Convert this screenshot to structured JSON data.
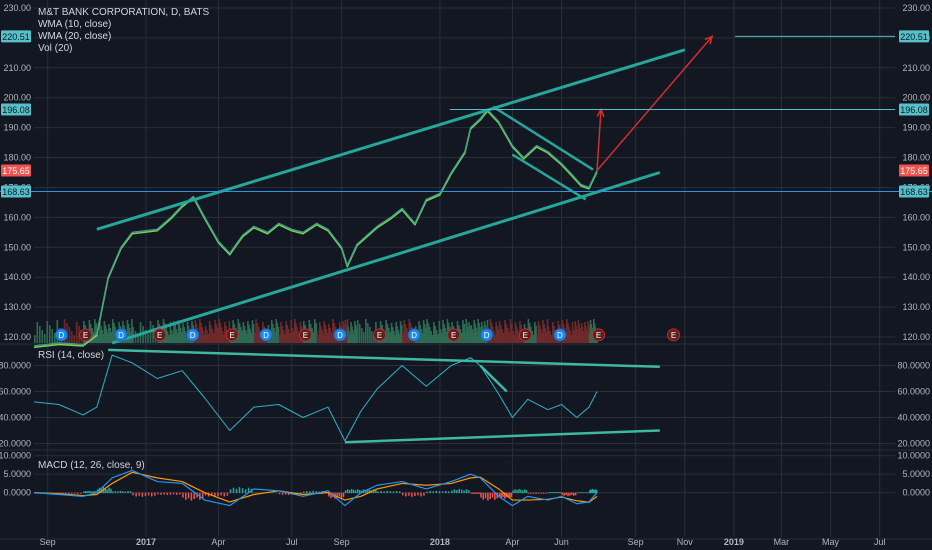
{
  "header": {
    "symbol": "M&T BANK CORPORATION, D, BATS",
    "indicators": [
      "WMA (10, close)",
      "WMA (20, close)",
      "Vol (20)"
    ]
  },
  "colors": {
    "background": "#131722",
    "grid": "#2a2e39",
    "axis_text": "#b2b5be",
    "channel": "#26a69a",
    "trendline": "#3fb8a0",
    "projection": "#d32f2f",
    "price_line": "#2196f3",
    "wma10": "#7cd34b",
    "wma20": "#e53935",
    "volume_up": "#2e6b53",
    "volume_down": "#6e2a2a",
    "rsi": "#2ab3c7",
    "macd": "#2196f3",
    "signal": "#ff9800",
    "hist_up": "#26a69a",
    "hist_down": "#ef5350",
    "label_cyan": "#55c0c9",
    "label_red": "#ef5350"
  },
  "chart_data": [
    {
      "type": "line",
      "pane": "price",
      "ylim": [
        118,
        232
      ],
      "y_ticks": [
        120,
        130,
        140,
        150,
        160,
        170,
        180,
        190,
        200,
        210,
        220,
        230
      ],
      "y_tick_labels": [
        "120.00",
        "130.00",
        "140.00",
        "150.00",
        "160.00",
        "170.00",
        "180.00",
        "190.00",
        "200.00",
        "210.00",
        "220.00",
        "230.00"
      ],
      "x_tick_labels": [
        "Sep",
        "2017",
        "Apr",
        "Jul",
        "Sep",
        "2018",
        "Apr",
        "Jun",
        "Sep",
        "Nov",
        "2019",
        "Mar",
        "May",
        "Jul"
      ],
      "x_tick_dates": [
        "2016-09-01",
        "2017-01-01",
        "2017-04-01",
        "2017-07-01",
        "2017-09-01",
        "2018-01-01",
        "2018-04-01",
        "2018-06-01",
        "2018-09-01",
        "2018-11-01",
        "2019-01-01",
        "2019-03-01",
        "2019-05-01",
        "2019-07-01"
      ],
      "x_range": [
        "2016-08-15",
        "2019-07-20"
      ],
      "price_labels": [
        {
          "text": "220.51",
          "value": 220.51,
          "style": "cyan"
        },
        {
          "text": "196.08",
          "value": 196.08,
          "style": "cyan"
        },
        {
          "text": "175.65",
          "value": 175.65,
          "style": "red"
        },
        {
          "text": "168.63",
          "value": 168.63,
          "style": "cyan"
        }
      ],
      "close_series": {
        "x": [
          "2016-08-15",
          "2016-09-15",
          "2016-10-15",
          "2016-11-01",
          "2016-11-15",
          "2016-12-01",
          "2016-12-15",
          "2017-01-15",
          "2017-02-01",
          "2017-02-15",
          "2017-03-01",
          "2017-03-15",
          "2017-04-01",
          "2017-04-15",
          "2017-05-01",
          "2017-05-15",
          "2017-06-01",
          "2017-06-15",
          "2017-07-01",
          "2017-07-15",
          "2017-08-01",
          "2017-08-15",
          "2017-09-01",
          "2017-09-08",
          "2017-09-20",
          "2017-10-15",
          "2017-11-01",
          "2017-11-15",
          "2017-12-01",
          "2017-12-15",
          "2018-01-01",
          "2018-01-15",
          "2018-02-01",
          "2018-02-08",
          "2018-02-20",
          "2018-03-01",
          "2018-03-15",
          "2018-04-01",
          "2018-04-15",
          "2018-05-01",
          "2018-05-15",
          "2018-06-01",
          "2018-06-15",
          "2018-06-25",
          "2018-07-05",
          "2018-07-15"
        ],
        "y": [
          117,
          118,
          117.5,
          121,
          140,
          150,
          155,
          156,
          160,
          164,
          167,
          160,
          152,
          148,
          154,
          157,
          155,
          158,
          156,
          155,
          158,
          156,
          150,
          144,
          151,
          157,
          160,
          163,
          158,
          166,
          168,
          175,
          182,
          190,
          193,
          196,
          192,
          184,
          180,
          184,
          182,
          178,
          174,
          171,
          170,
          175.65
        ]
      },
      "projections": [
        {
          "x": [
            "2018-07-15",
            "2018-07-20"
          ],
          "y": [
            175.65,
            196.08
          ]
        },
        {
          "x": [
            "2018-07-15",
            "2018-12-05"
          ],
          "y": [
            175.65,
            220.51
          ]
        }
      ],
      "channel_lines": [
        {
          "x": [
            "2016-11-01",
            "2018-11-01"
          ],
          "y": [
            156,
            216
          ]
        },
        {
          "x": [
            "2016-11-20",
            "2018-10-01"
          ],
          "y": [
            118,
            175
          ]
        }
      ],
      "wedge_lines": [
        {
          "x": [
            "2018-03-08",
            "2018-07-10"
          ],
          "y": [
            197,
            176
          ]
        },
        {
          "x": [
            "2018-04-01",
            "2018-07-01"
          ],
          "y": [
            181,
            166
          ]
        }
      ],
      "event_markers": [
        {
          "date": "2016-09-18",
          "letter": "D"
        },
        {
          "date": "2016-10-18",
          "letter": "E"
        },
        {
          "date": "2016-12-01",
          "letter": "D"
        },
        {
          "date": "2017-01-18",
          "letter": "E"
        },
        {
          "date": "2017-02-28",
          "letter": "D"
        },
        {
          "date": "2017-04-18",
          "letter": "E"
        },
        {
          "date": "2017-05-30",
          "letter": "D"
        },
        {
          "date": "2017-07-18",
          "letter": "E"
        },
        {
          "date": "2017-08-30",
          "letter": "D"
        },
        {
          "date": "2017-10-18",
          "letter": "E"
        },
        {
          "date": "2017-11-30",
          "letter": "D"
        },
        {
          "date": "2018-01-18",
          "letter": "E"
        },
        {
          "date": "2018-02-28",
          "letter": "D"
        },
        {
          "date": "2018-04-17",
          "letter": "E"
        },
        {
          "date": "2018-05-30",
          "letter": "D"
        },
        {
          "date": "2018-07-17",
          "letter": "E"
        },
        {
          "date": "2018-10-18",
          "letter": "E"
        }
      ]
    },
    {
      "type": "line",
      "pane": "rsi",
      "title": "RSI (14, close)",
      "ylim": [
        15,
        95
      ],
      "y_ticks": [
        20,
        40,
        60,
        80
      ],
      "y_tick_labels": [
        "20.0000",
        "40.0000",
        "60.0000",
        "80.0000"
      ],
      "trendlines": [
        {
          "x": [
            "2016-11-15",
            "2018-10-01"
          ],
          "y": [
            92,
            79
          ]
        },
        {
          "x": [
            "2017-09-05",
            "2018-10-01"
          ],
          "y": [
            21,
            30
          ]
        },
        {
          "x": [
            "2018-02-20",
            "2018-03-25"
          ],
          "y": [
            80,
            60
          ]
        }
      ],
      "series": {
        "x": [
          "2016-08-15",
          "2016-09-15",
          "2016-10-15",
          "2016-11-01",
          "2016-11-20",
          "2016-12-15",
          "2017-01-15",
          "2017-02-15",
          "2017-03-15",
          "2017-04-15",
          "2017-05-15",
          "2017-06-15",
          "2017-07-15",
          "2017-08-15",
          "2017-09-05",
          "2017-09-25",
          "2017-10-15",
          "2017-11-15",
          "2017-12-15",
          "2018-01-15",
          "2018-02-08",
          "2018-02-20",
          "2018-03-15",
          "2018-04-01",
          "2018-04-20",
          "2018-05-15",
          "2018-06-01",
          "2018-06-20",
          "2018-07-05",
          "2018-07-15"
        ],
        "y": [
          52,
          50,
          42,
          48,
          88,
          82,
          70,
          76,
          55,
          30,
          48,
          50,
          40,
          48,
          22,
          45,
          62,
          80,
          64,
          80,
          86,
          80,
          58,
          40,
          54,
          46,
          50,
          40,
          48,
          60
        ]
      }
    },
    {
      "type": "line",
      "pane": "macd",
      "title": "MACD (12, 26, close, 9)",
      "ylim": [
        -12,
        11
      ],
      "y_ticks": [
        0,
        5,
        10
      ],
      "y_tick_labels": [
        "0.0000",
        "5.0000",
        "10.0000"
      ],
      "series": [
        {
          "x": [
            "2016-08-15",
            "2016-09-15",
            "2016-10-15",
            "2016-11-01",
            "2016-11-20",
            "2016-12-15",
            "2017-01-15",
            "2017-02-15",
            "2017-03-15",
            "2017-04-15",
            "2017-05-15",
            "2017-06-15",
            "2017-07-15",
            "2017-08-15",
            "2017-09-05",
            "2017-09-25",
            "2017-10-15",
            "2017-11-15",
            "2017-12-15",
            "2018-01-15",
            "2018-02-08",
            "2018-02-20",
            "2018-03-15",
            "2018-04-01",
            "2018-04-20",
            "2018-05-15",
            "2018-06-01",
            "2018-06-20",
            "2018-07-05",
            "2018-07-15"
          ],
          "y": [
            0,
            -0.5,
            -1,
            0,
            4,
            6,
            3,
            2.5,
            -2,
            -3.5,
            1,
            0.5,
            -1,
            0.5,
            -3.5,
            0,
            2,
            3,
            1,
            3,
            5,
            4,
            -1,
            -3.5,
            -1,
            -2,
            -1,
            -3,
            -2.5,
            0
          ]
        },
        {
          "x": [
            "2016-08-15",
            "2016-09-15",
            "2016-10-15",
            "2016-11-01",
            "2016-11-20",
            "2016-12-15",
            "2017-01-15",
            "2017-02-15",
            "2017-03-15",
            "2017-04-15",
            "2017-05-15",
            "2017-06-15",
            "2017-07-15",
            "2017-08-15",
            "2017-09-05",
            "2017-09-25",
            "2017-10-15",
            "2017-11-15",
            "2017-12-15",
            "2018-01-15",
            "2018-02-08",
            "2018-02-20",
            "2018-03-15",
            "2018-04-01",
            "2018-04-20",
            "2018-05-15",
            "2018-06-01",
            "2018-06-20",
            "2018-07-05",
            "2018-07-15"
          ],
          "y": [
            0,
            -0.3,
            -0.8,
            -0.5,
            2.5,
            5.5,
            4,
            3,
            0,
            -2.5,
            -0.5,
            0.5,
            -0.5,
            0,
            -2,
            -1,
            1,
            2.5,
            2,
            2.5,
            4,
            4.2,
            1,
            -2,
            -2,
            -1.8,
            -1.2,
            -2.2,
            -2.6,
            -1
          ]
        }
      ]
    }
  ]
}
